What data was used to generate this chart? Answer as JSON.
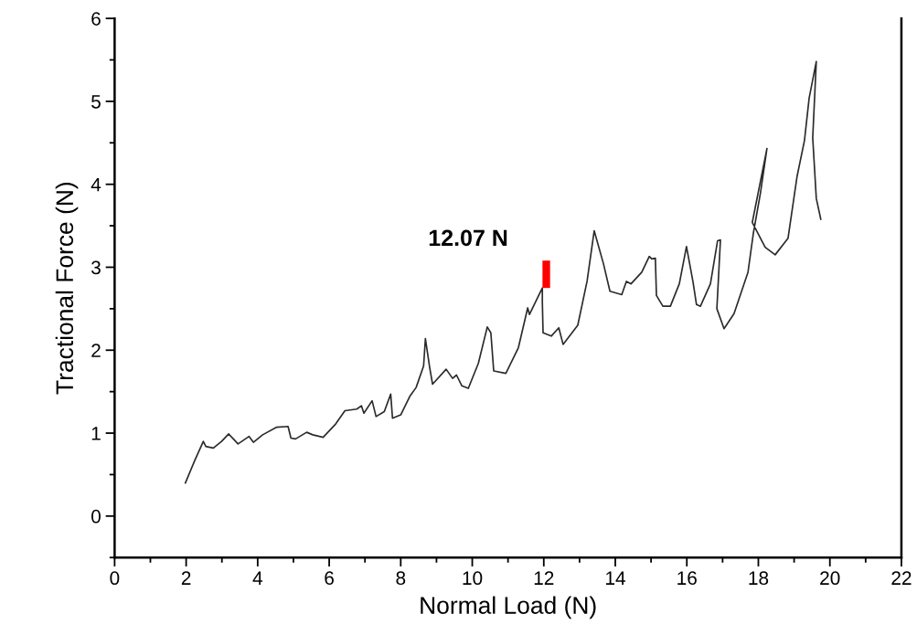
{
  "chart_data": {
    "type": "line",
    "xlabel": "Normal Load (N)",
    "ylabel": "Tractional Force (N)",
    "xlim": [
      0,
      22
    ],
    "xticks": [
      0,
      2,
      4,
      6,
      8,
      10,
      12,
      14,
      16,
      18,
      20,
      22
    ],
    "ylim": [
      -0.5,
      6
    ],
    "yticks": [
      0,
      1,
      2,
      3,
      4,
      5,
      6
    ],
    "marker": "none",
    "line_style": "solid",
    "annotations": [
      {
        "text": "12.07 N",
        "x": 12.07,
        "y": 3.08
      }
    ],
    "series": [
      {
        "color": "#2b2b2b",
        "x": [
          1.97,
          2.25,
          2.48,
          2.55,
          2.76,
          2.99,
          3.19,
          3.45,
          3.76,
          3.88,
          4.14,
          4.52,
          4.85,
          4.93,
          5.06,
          5.37,
          5.54,
          5.83,
          6.18,
          6.44,
          6.77,
          6.9,
          6.97,
          7.2,
          7.31,
          7.54,
          7.72,
          7.77,
          8.0,
          8.25,
          8.43,
          8.64,
          8.69,
          8.81,
          8.89,
          9.27,
          9.45,
          9.56,
          9.71,
          9.89,
          10.17,
          10.42,
          10.52,
          10.6,
          10.94,
          11.29,
          11.55,
          11.6,
          11.96,
          11.96,
          11.98,
          12.21,
          12.42,
          12.54,
          12.95,
          13.21,
          13.41,
          13.67,
          13.85,
          14.18,
          14.31,
          14.44,
          14.74,
          14.95,
          15.02,
          15.12,
          15.15,
          15.33,
          15.54,
          15.79,
          15.99,
          16.17,
          16.27,
          16.38,
          16.66,
          16.86,
          16.94,
          16.84,
          17.04,
          17.32,
          17.71,
          17.86,
          18.06,
          18.24,
          17.83,
          18.19,
          18.47,
          18.83,
          19.08,
          19.29,
          19.42,
          19.62,
          19.52,
          19.62,
          19.75
        ],
        "values": [
          0.39,
          0.68,
          0.9,
          0.84,
          0.82,
          0.9,
          0.99,
          0.87,
          0.96,
          0.89,
          0.98,
          1.07,
          1.08,
          0.94,
          0.93,
          1.01,
          0.98,
          0.95,
          1.11,
          1.27,
          1.29,
          1.33,
          1.24,
          1.39,
          1.2,
          1.26,
          1.47,
          1.18,
          1.22,
          1.44,
          1.55,
          1.81,
          2.14,
          1.79,
          1.59,
          1.77,
          1.66,
          1.7,
          1.57,
          1.54,
          1.84,
          2.28,
          2.21,
          1.75,
          1.72,
          2.03,
          2.51,
          2.43,
          2.75,
          2.58,
          2.21,
          2.17,
          2.27,
          2.07,
          2.3,
          2.83,
          3.44,
          3.04,
          2.71,
          2.67,
          2.83,
          2.8,
          2.94,
          3.13,
          3.1,
          3.11,
          2.66,
          2.53,
          2.53,
          2.8,
          3.25,
          2.83,
          2.55,
          2.53,
          2.8,
          3.32,
          3.33,
          2.5,
          2.26,
          2.44,
          2.94,
          3.41,
          3.9,
          4.43,
          3.54,
          3.24,
          3.15,
          3.35,
          4.09,
          4.53,
          5.04,
          5.48,
          4.56,
          3.83,
          3.57
        ]
      },
      {
        "color": "#ff0000",
        "x": [
          12.07,
          12.07
        ],
        "values": [
          2.75,
          3.08
        ]
      }
    ]
  }
}
